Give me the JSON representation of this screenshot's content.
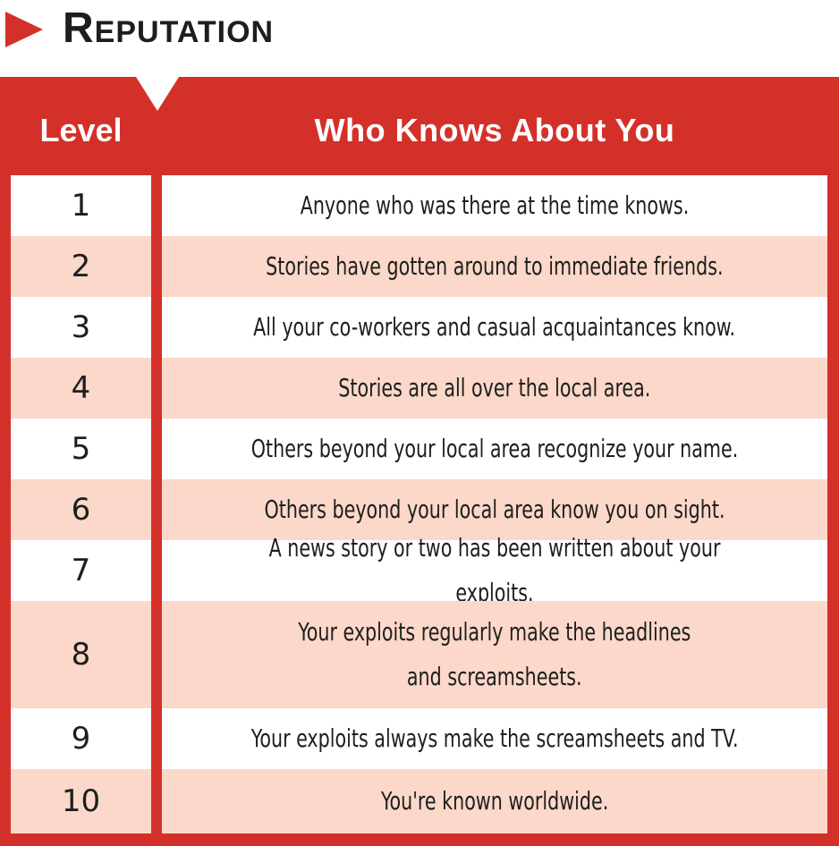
{
  "title": {
    "first_letter": "R",
    "rest": "EPUTATION"
  },
  "colors": {
    "accent": "#d4302a",
    "row_alt": "#fbd8c9",
    "text": "#1e1e1e"
  },
  "table": {
    "headers": [
      "Level",
      "Who Knows About You"
    ],
    "rows": [
      {
        "level": "1",
        "desc": "Anyone who was there at the time knows."
      },
      {
        "level": "2",
        "desc": "Stories have gotten around to immediate friends."
      },
      {
        "level": "3",
        "desc": "All your co-workers and casual acquaintances know."
      },
      {
        "level": "4",
        "desc": "Stories are all over the local area."
      },
      {
        "level": "5",
        "desc": "Others beyond your local area recognize your name."
      },
      {
        "level": "6",
        "desc": "Others beyond your local area know you on sight."
      },
      {
        "level": "7",
        "desc": "A news story or two has been written about your exploits."
      },
      {
        "level": "8",
        "desc": "Your exploits regularly make the headlines\nand screamsheets."
      },
      {
        "level": "9",
        "desc": "Your exploits always make the screamsheets and TV."
      },
      {
        "level": "10",
        "desc": "You're known worldwide."
      }
    ]
  }
}
